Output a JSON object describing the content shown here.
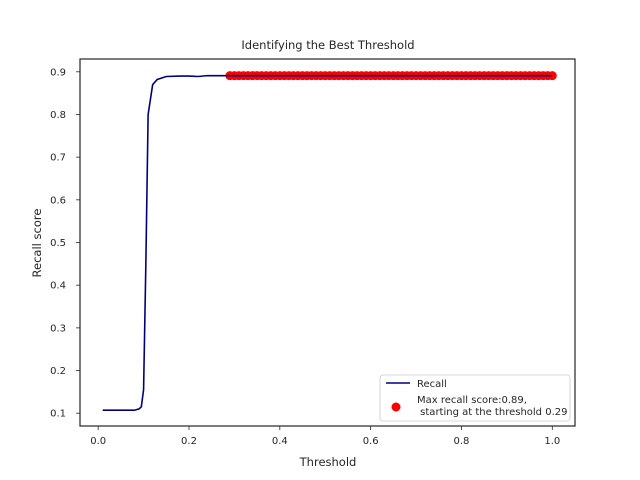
{
  "chart_data": {
    "type": "line",
    "title": "Identifying the Best Threshold",
    "xlabel": "Threshold",
    "ylabel": "Recall score",
    "xlim": [
      -0.04,
      1.05
    ],
    "ylim": [
      0.07,
      0.93
    ],
    "xticks": [
      0.0,
      0.2,
      0.4,
      0.6,
      0.8,
      1.0
    ],
    "xtick_labels": [
      "0.0",
      "0.2",
      "0.4",
      "0.6",
      "0.8",
      "1.0"
    ],
    "yticks": [
      0.1,
      0.2,
      0.3,
      0.4,
      0.5,
      0.6,
      0.7,
      0.8,
      0.9
    ],
    "ytick_labels": [
      "0.1",
      "0.2",
      "0.3",
      "0.4",
      "0.5",
      "0.6",
      "0.7",
      "0.8",
      "0.9"
    ],
    "grid": false,
    "legend_position": "lower-right",
    "series": [
      {
        "name": "Recall",
        "kind": "line",
        "color": "#00007f",
        "x": [
          0.01,
          0.05,
          0.08,
          0.09,
          0.095,
          0.1,
          0.105,
          0.11,
          0.12,
          0.13,
          0.15,
          0.18,
          0.2,
          0.22,
          0.24,
          0.26,
          0.28,
          0.29,
          1.0
        ],
        "y": [
          0.107,
          0.107,
          0.107,
          0.11,
          0.115,
          0.155,
          0.45,
          0.8,
          0.87,
          0.882,
          0.889,
          0.89,
          0.89,
          0.889,
          0.891,
          0.891,
          0.891,
          0.891,
          0.891
        ]
      },
      {
        "name": "Max recall score:0.89,\n starting at the threshold 0.29",
        "legend_lines": [
          "Max recall score:0.89,",
          " starting at the threshold 0.29"
        ],
        "kind": "scatter",
        "color": "#ff0000",
        "x_start": 0.29,
        "x_end": 1.0,
        "x_step": 0.01,
        "y": 0.891
      }
    ]
  }
}
